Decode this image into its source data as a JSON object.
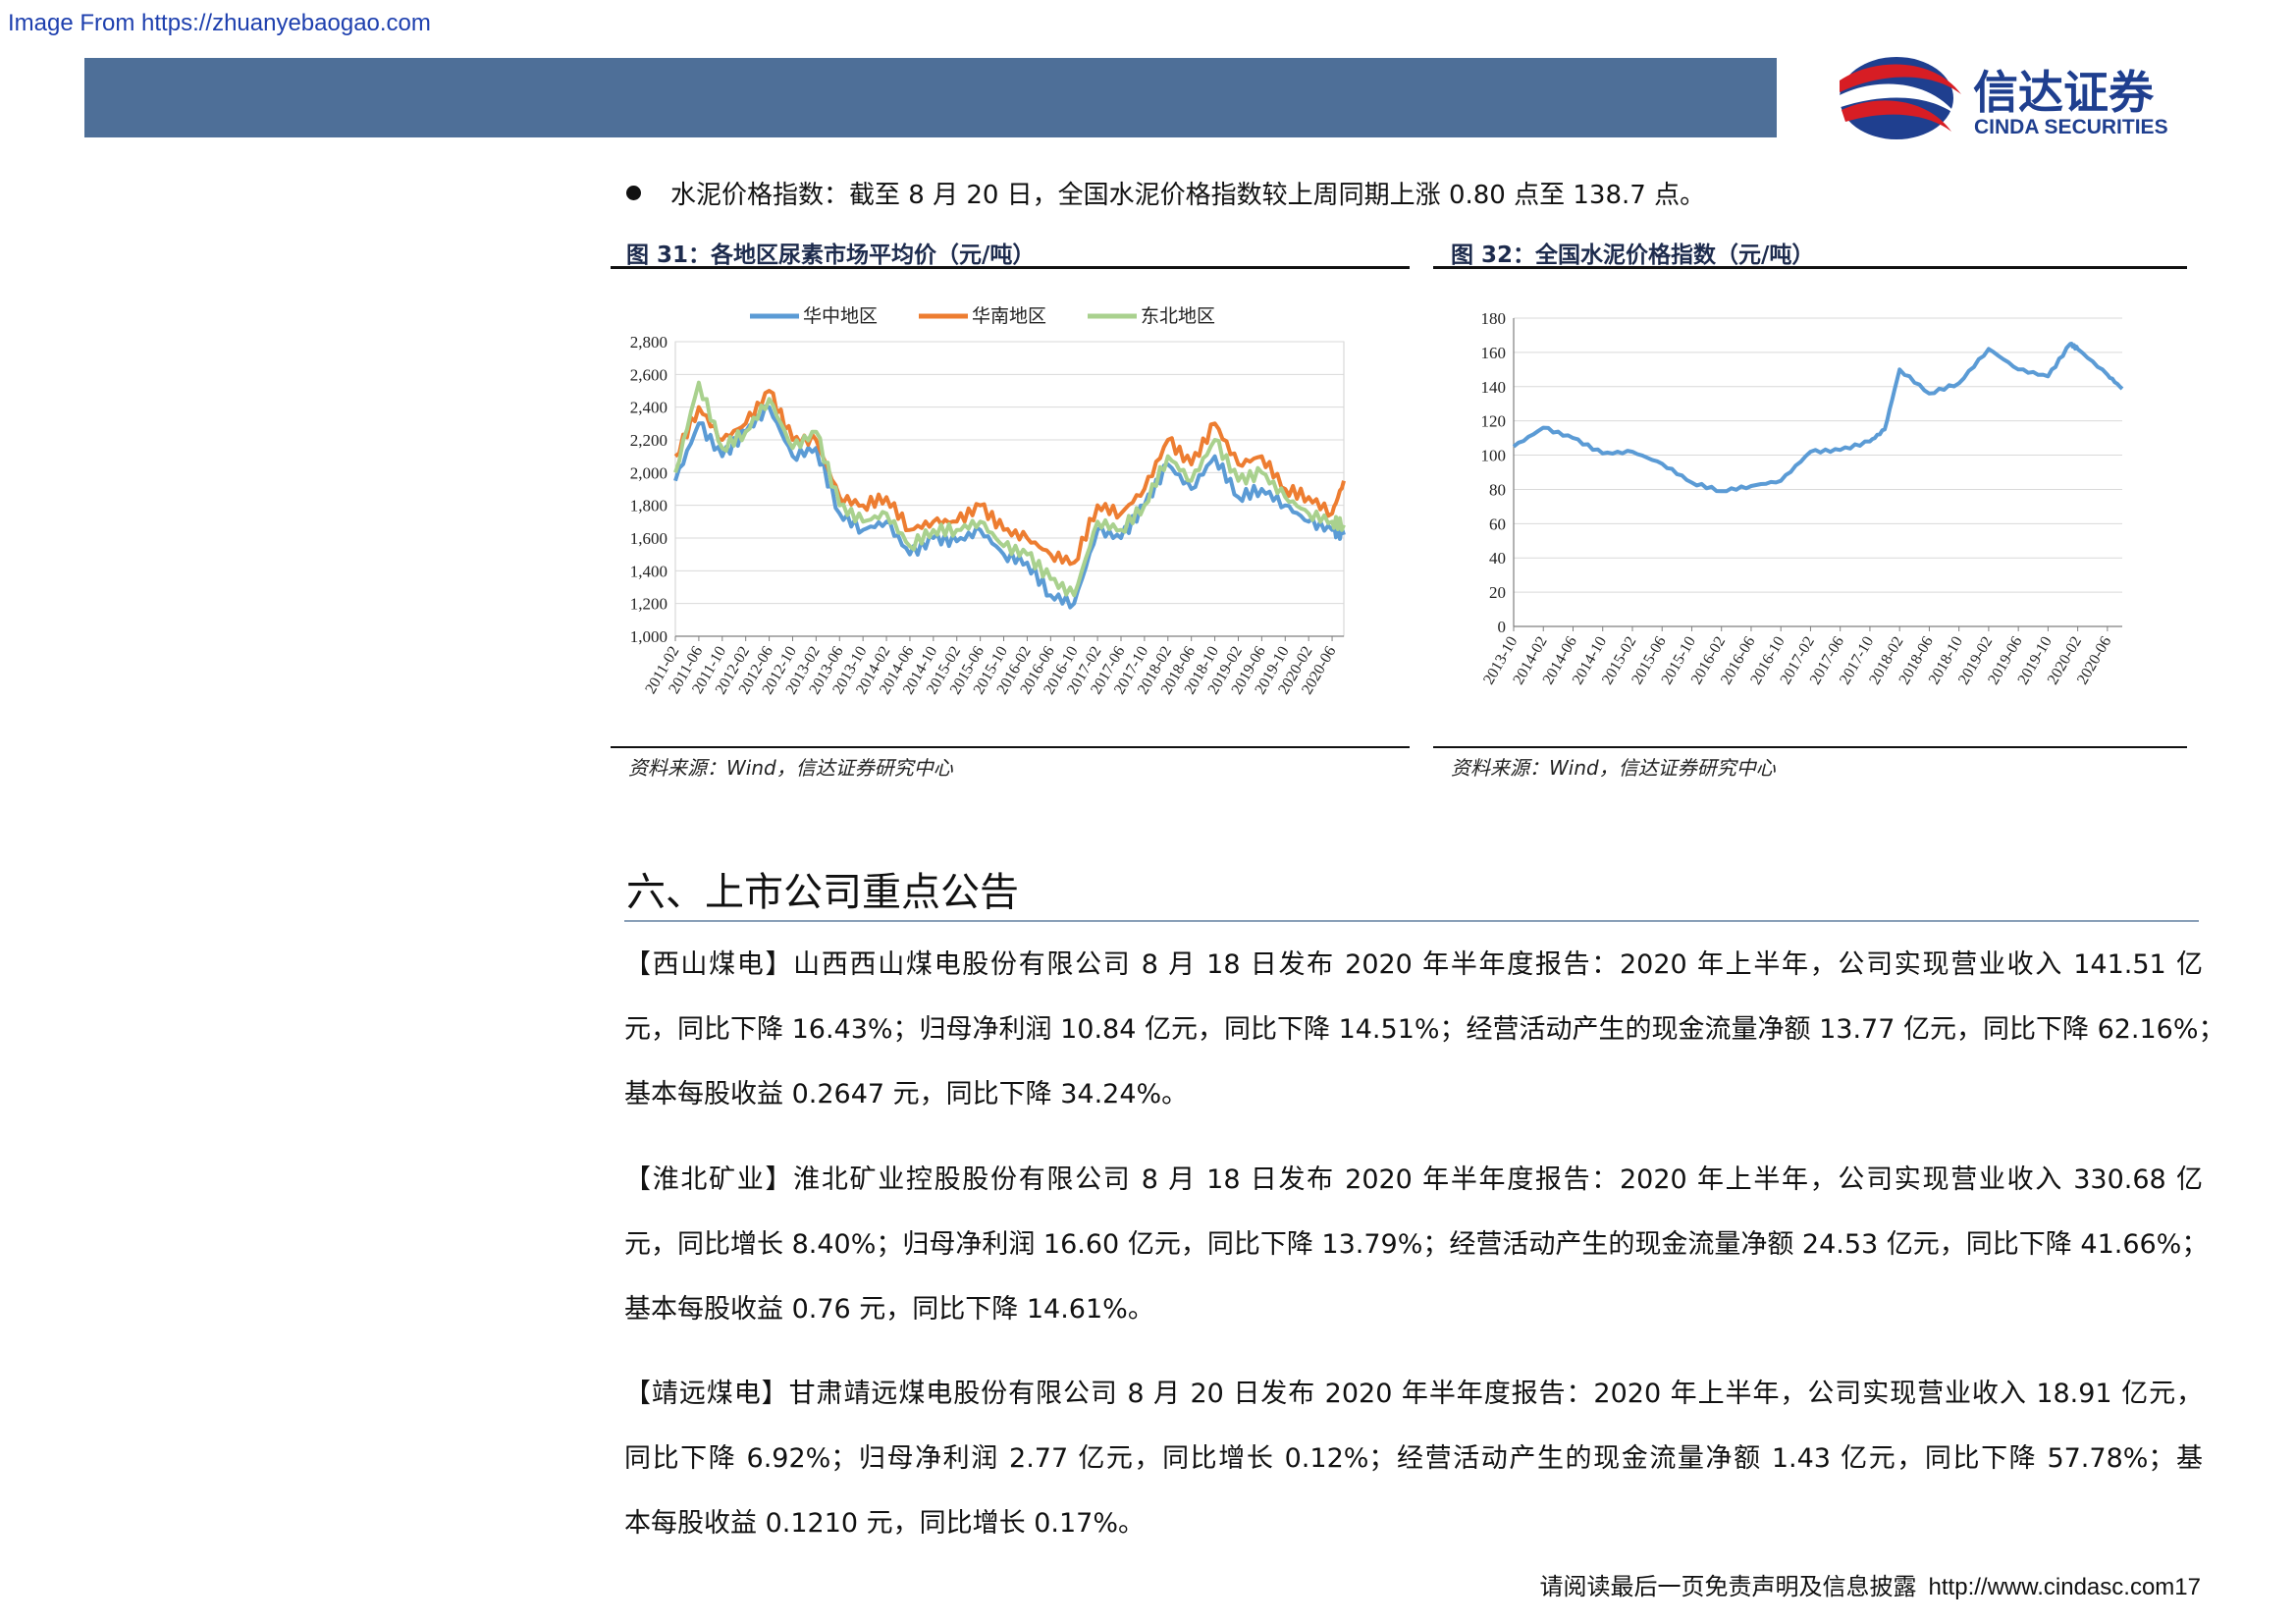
{
  "watermark": "Image From https://zhuanyebaogao.com",
  "brand": {
    "name_cn": "信达证券",
    "name_en": "CINDA SECURITIES",
    "header_color": "#4e6f98",
    "logo_red": "#d71d24",
    "logo_blue": "#1f3f8f"
  },
  "bullet": "水泥价格指数：截至 8 月 20 日，全国水泥价格指数较上周同期上涨 0.80 点至 138.7 点。",
  "figures": [
    {
      "title": "图 31：各地区尿素市场平均价（元/吨）",
      "source": "资料来源：Wind，信达证券研究中心"
    },
    {
      "title": "图 32：全国水泥价格指数（元/吨）",
      "source": "资料来源：Wind，信达证券研究中心"
    }
  ],
  "chart_data": [
    {
      "type": "line",
      "title": "",
      "xlabel": "",
      "ylabel": "",
      "ylim": [
        1000,
        2800
      ],
      "yticks": [
        "1,000",
        "1,200",
        "1,400",
        "1,600",
        "1,800",
        "2,000",
        "2,200",
        "2,400",
        "2,600",
        "2,800"
      ],
      "xticks": [
        "2011-02",
        "2011-06",
        "2011-10",
        "2012-02",
        "2012-06",
        "2012-10",
        "2013-02",
        "2013-06",
        "2013-10",
        "2014-02",
        "2014-06",
        "2014-10",
        "2015-02",
        "2015-06",
        "2015-10",
        "2016-02",
        "2016-06",
        "2016-10",
        "2017-02",
        "2017-06",
        "2017-10",
        "2018-02",
        "2018-06",
        "2018-10",
        "2019-02",
        "2019-06",
        "2019-10",
        "2020-02",
        "2020-06"
      ],
      "grid": true,
      "legend_position": "top",
      "x": [
        "2011-02",
        "2011-06",
        "2011-10",
        "2012-02",
        "2012-06",
        "2012-10",
        "2013-02",
        "2013-06",
        "2013-10",
        "2014-02",
        "2014-06",
        "2014-10",
        "2015-02",
        "2015-06",
        "2015-10",
        "2016-02",
        "2016-06",
        "2016-10",
        "2017-02",
        "2017-06",
        "2017-10",
        "2018-02",
        "2018-06",
        "2018-10",
        "2019-02",
        "2019-06",
        "2019-10",
        "2020-02",
        "2020-06",
        "2020-08"
      ],
      "series": [
        {
          "name": "华中地区",
          "color": "#5b9bd5",
          "values": [
            1950,
            2300,
            2100,
            2250,
            2400,
            2100,
            2150,
            1750,
            1650,
            1700,
            1500,
            1600,
            1580,
            1650,
            1500,
            1450,
            1250,
            1200,
            1650,
            1600,
            1800,
            2050,
            1900,
            2100,
            1850,
            1900,
            1800,
            1700,
            1650,
            1620
          ]
        },
        {
          "name": "华南地区",
          "color": "#ed7d31",
          "values": [
            2100,
            2400,
            2200,
            2300,
            2500,
            2200,
            2200,
            1850,
            1800,
            1850,
            1650,
            1700,
            1700,
            1800,
            1650,
            1600,
            1500,
            1450,
            1800,
            1750,
            1900,
            2200,
            2050,
            2300,
            2050,
            2100,
            1900,
            1850,
            1750,
            1950
          ]
        },
        {
          "name": "东北地区",
          "color": "#a9d18e",
          "values": [
            2000,
            2550,
            2150,
            2250,
            2450,
            2150,
            2250,
            1800,
            1700,
            1750,
            1550,
            1650,
            1650,
            1700,
            1550,
            1500,
            1350,
            1250,
            1700,
            1650,
            1800,
            2100,
            1950,
            2200,
            1950,
            2000,
            1850,
            1750,
            1700,
            1680
          ]
        }
      ]
    },
    {
      "type": "line",
      "title": "",
      "xlabel": "",
      "ylabel": "",
      "ylim": [
        0,
        180
      ],
      "yticks": [
        "0",
        "20",
        "40",
        "60",
        "80",
        "100",
        "120",
        "140",
        "160",
        "180"
      ],
      "xticks": [
        "2013-10",
        "2014-02",
        "2014-06",
        "2014-10",
        "2015-02",
        "2015-06",
        "2015-10",
        "2016-02",
        "2016-06",
        "2016-10",
        "2017-02",
        "2017-06",
        "2017-10",
        "2018-02",
        "2018-06",
        "2018-10",
        "2019-02",
        "2019-06",
        "2019-10",
        "2020-02",
        "2020-06"
      ],
      "grid": true,
      "legend_position": "none",
      "x": [
        "2013-10",
        "2014-02",
        "2014-06",
        "2014-10",
        "2015-02",
        "2015-06",
        "2015-10",
        "2016-02",
        "2016-06",
        "2016-10",
        "2017-02",
        "2017-06",
        "2017-10",
        "2017-12",
        "2018-02",
        "2018-06",
        "2018-10",
        "2019-02",
        "2019-06",
        "2019-10",
        "2020-01",
        "2020-02",
        "2020-06",
        "2020-08"
      ],
      "series": [
        {
          "name": "",
          "color": "#5b9bd5",
          "values": [
            105,
            116,
            110,
            101,
            102,
            95,
            84,
            79,
            82,
            85,
            102,
            103,
            108,
            115,
            150,
            136,
            142,
            162,
            150,
            146,
            165,
            162,
            147,
            138.7
          ]
        }
      ]
    }
  ],
  "section_title": "六、上市公司重点公告",
  "announcements": [
    {
      "lines": [
        "【西山煤电】山西西山煤电股份有限公司 8 月 18 日发布 2020 年半年度报告：2020 年上半年，公司实现营业收入 141.51 亿",
        "元，同比下降 16.43%；归母净利润 10.84 亿元，同比下降 14.51%；经营活动产生的现金流量净额 13.77 亿元，同比下降 62.16%；",
        "基本每股收益 0.2647 元，同比下降 34.24%。"
      ]
    },
    {
      "lines": [
        "【淮北矿业】淮北矿业控股股份有限公司 8 月 18 日发布 2020 年半年度报告：2020 年上半年，公司实现营业收入 330.68 亿",
        "元，同比增长 8.40%；归母净利润 16.60 亿元，同比下降 13.79%；经营活动产生的现金流量净额 24.53 亿元，同比下降 41.66%；",
        "基本每股收益 0.76 元，同比下降 14.61%。"
      ]
    },
    {
      "lines": [
        "【靖远煤电】甘肃靖远煤电股份有限公司 8 月 20 日发布 2020 年半年度报告：2020 年上半年，公司实现营业收入 18.91 亿元，",
        "同比下降 6.92%；归母净利润 2.77 亿元，同比增长 0.12%；经营活动产生的现金流量净额 1.43 亿元，同比下降 57.78%；基",
        "本每股收益 0.1210 元，同比增长 0.17%。"
      ]
    }
  ],
  "footer": {
    "disclaimer": "请阅读最后一页免责声明及信息披露",
    "url": "http://www.cindasc.com",
    "page": "17"
  }
}
